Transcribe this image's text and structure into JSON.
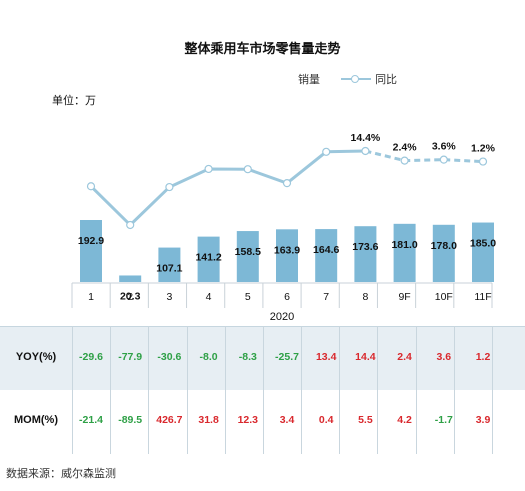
{
  "chart_data": {
    "type": "bar+line",
    "title": "整体乘用车市场零售量走势",
    "unit_label": "单位：万",
    "legend": [
      "销量",
      "同比"
    ],
    "year_label": "2020",
    "categories": [
      "1",
      "2",
      "3",
      "4",
      "5",
      "6",
      "7",
      "8",
      "9F",
      "10F",
      "11F"
    ],
    "sales": [
      192.9,
      20.3,
      107.1,
      141.2,
      158.5,
      163.9,
      164.6,
      173.6,
      181.0,
      178.0,
      185.0
    ],
    "sales_labels": [
      "192.9",
      "20.3",
      "107.1",
      "141.2",
      "158.5",
      "163.9",
      "164.6",
      "173.6",
      "181.0",
      "178.0",
      "185.0"
    ],
    "yoy": [
      -29.6,
      -77.9,
      -30.6,
      -8.0,
      -8.3,
      -25.7,
      13.4,
      14.4,
      2.4,
      3.6,
      1.2
    ],
    "yoy_point_labels": [
      "",
      "",
      "",
      "",
      "",
      "",
      "",
      "14.4%",
      "2.4%",
      "3.6%",
      "1.2%"
    ],
    "mom": [
      -21.4,
      -89.5,
      426.7,
      31.8,
      12.3,
      3.4,
      0.4,
      5.5,
      4.2,
      -1.7,
      3.9
    ],
    "forecast_from_index": 7,
    "colors": {
      "bar": "#7db8d6",
      "line": "#9cc7dc",
      "positive": "#d9282d",
      "negative": "#2ea046"
    }
  },
  "table": {
    "yoy_label": "YOY(%)",
    "mom_label": "MOM(%)",
    "yoy_values": [
      "-29.6",
      "-77.9",
      "-30.6",
      "-8.0",
      "-8.3",
      "-25.7",
      "13.4",
      "14.4",
      "2.4",
      "3.6",
      "1.2"
    ],
    "mom_values": [
      "-21.4",
      "-89.5",
      "426.7",
      "31.8",
      "12.3",
      "3.4",
      "0.4",
      "5.5",
      "4.2",
      "-1.7",
      "3.9"
    ]
  },
  "source": "数据来源：威尔森监测"
}
